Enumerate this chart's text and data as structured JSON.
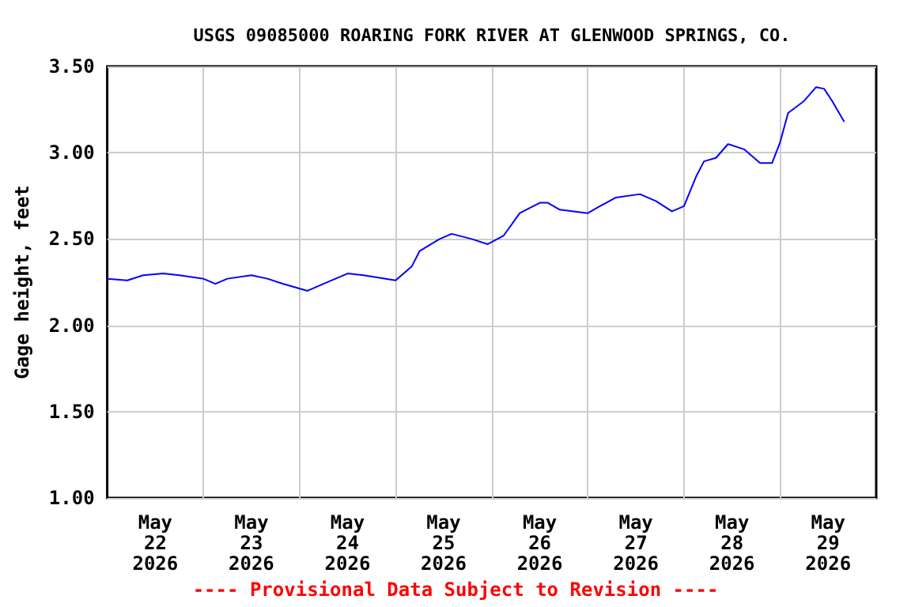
{
  "chart_data": {
    "type": "line",
    "title": "USGS 09085000 ROARING FORK RIVER AT GLENWOOD SPRINGS, CO.",
    "ylabel": "Gage height, feet",
    "annotations": [
      "---- Provisional Data Subject to Revision ----"
    ],
    "x": [
      "2026-05-22T00:00",
      "2026-05-22T05:00",
      "2026-05-22T09:00",
      "2026-05-22T14:00",
      "2026-05-22T18:00",
      "2026-05-23T00:00",
      "2026-05-23T03:00",
      "2026-05-23T06:00",
      "2026-05-23T12:00",
      "2026-05-23T16:00",
      "2026-05-23T20:00",
      "2026-05-24T02:00",
      "2026-05-24T06:00",
      "2026-05-24T12:00",
      "2026-05-24T16:00",
      "2026-05-25T00:00",
      "2026-05-25T04:00",
      "2026-05-25T06:00",
      "2026-05-25T11:00",
      "2026-05-25T14:00",
      "2026-05-25T19:00",
      "2026-05-25T23:00",
      "2026-05-26T03:00",
      "2026-05-26T07:00",
      "2026-05-26T12:00",
      "2026-05-26T14:00",
      "2026-05-26T17:00",
      "2026-05-27T00:00",
      "2026-05-27T03:00",
      "2026-05-27T07:00",
      "2026-05-27T13:00",
      "2026-05-27T17:00",
      "2026-05-27T21:00",
      "2026-05-28T00:00",
      "2026-05-28T03:00",
      "2026-05-28T05:00",
      "2026-05-28T08:00",
      "2026-05-28T11:00",
      "2026-05-28T15:00",
      "2026-05-28T19:00",
      "2026-05-28T22:00",
      "2026-05-29T00:00",
      "2026-05-29T02:00",
      "2026-05-29T06:00",
      "2026-05-29T09:00",
      "2026-05-29T11:00",
      "2026-05-29T13:00",
      "2026-05-29T16:00"
    ],
    "series": [
      {
        "color": "#0000ff",
        "values": [
          2.27,
          2.26,
          2.29,
          2.3,
          2.29,
          2.27,
          2.24,
          2.27,
          2.29,
          2.27,
          2.24,
          2.2,
          2.24,
          2.3,
          2.29,
          2.26,
          2.34,
          2.43,
          2.5,
          2.53,
          2.5,
          2.47,
          2.52,
          2.65,
          2.71,
          2.71,
          2.67,
          2.65,
          2.69,
          2.74,
          2.76,
          2.72,
          2.66,
          2.69,
          2.86,
          2.95,
          2.97,
          3.05,
          3.02,
          2.94,
          2.94,
          3.06,
          3.23,
          3.3,
          3.38,
          3.37,
          3.3,
          3.18
        ]
      }
    ],
    "xlim": [
      "2026-05-22T00:00",
      "2026-05-30T00:00"
    ],
    "xticks": [
      {
        "value": "2026-05-22T12:00",
        "label": "May\n22\n2026"
      },
      {
        "value": "2026-05-23T12:00",
        "label": "May\n23\n2026"
      },
      {
        "value": "2026-05-24T12:00",
        "label": "May\n24\n2026"
      },
      {
        "value": "2026-05-25T12:00",
        "label": "May\n25\n2026"
      },
      {
        "value": "2026-05-26T12:00",
        "label": "May\n26\n2026"
      },
      {
        "value": "2026-05-27T12:00",
        "label": "May\n27\n2026"
      },
      {
        "value": "2026-05-28T12:00",
        "label": "May\n28\n2026"
      },
      {
        "value": "2026-05-29T12:00",
        "label": "May\n29\n2026"
      },
      {
        "value": "2026-05-23T00:00",
        "label": null
      },
      {
        "value": "2026-05-24T00:00",
        "label": null
      },
      {
        "value": "2026-05-25T00:00",
        "label": null
      },
      {
        "value": "2026-05-26T00:00",
        "label": null
      },
      {
        "value": "2026-05-27T00:00",
        "label": null
      },
      {
        "value": "2026-05-28T00:00",
        "label": null
      },
      {
        "value": "2026-05-29T00:00",
        "label": null
      }
    ],
    "ylim": [
      1,
      3.5
    ],
    "yticks": [
      {
        "value": 1,
        "label": "1.00"
      },
      {
        "value": 1.5,
        "label": "1.50"
      },
      {
        "value": 2,
        "label": "2.00"
      },
      {
        "value": 2.5,
        "label": "2.50"
      },
      {
        "value": 3,
        "label": "3.00"
      },
      {
        "value": 3.5,
        "label": "3.50"
      }
    ],
    "grid": true,
    "marker": "none",
    "line_style": "solid"
  }
}
